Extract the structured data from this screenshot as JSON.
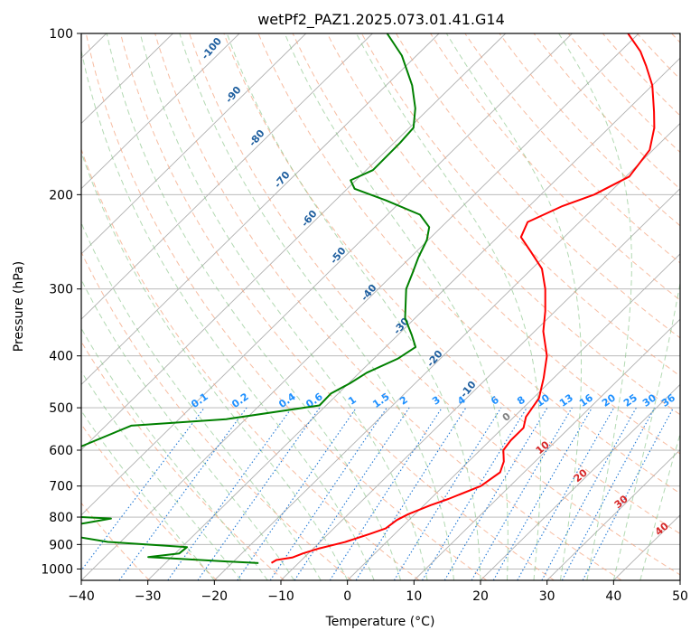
{
  "chart_data": {
    "type": "line",
    "title": "wetPf2_PAZ1.2025.073.01.41.G14",
    "xlabel": "Temperature (°C)",
    "ylabel": "Pressure (hPa)",
    "xlim": [
      -40,
      50
    ],
    "ylim_hPa": [
      1050,
      100
    ],
    "y_scale": "log (inverted)",
    "skewed_isotherms": true,
    "grid": true,
    "x_ticks": [
      "−40",
      "−30",
      "−20",
      "−10",
      "0",
      "10",
      "20",
      "30",
      "40",
      "50"
    ],
    "x_tick_values": [
      -40,
      -30,
      -20,
      -10,
      0,
      10,
      20,
      30,
      40,
      50
    ],
    "y_ticks": [
      "100",
      "200",
      "300",
      "400",
      "500",
      "600",
      "700",
      "800",
      "900",
      "1000"
    ],
    "y_tick_values": [
      100,
      200,
      300,
      400,
      500,
      600,
      700,
      800,
      900,
      1000
    ],
    "series": [
      {
        "role": "temperature",
        "color": "#ff0000",
        "points": [
          [
            974,
            -14.1
          ],
          [
            962,
            -13.8
          ],
          [
            952,
            -11.8
          ],
          [
            935,
            -10.8
          ],
          [
            915,
            -9.1
          ],
          [
            890,
            -6.2
          ],
          [
            860,
            -3.7
          ],
          [
            840,
            -2.2
          ],
          [
            810,
            -1.8
          ],
          [
            790,
            -1.0
          ],
          [
            760,
            1.0
          ],
          [
            740,
            2.7
          ],
          [
            700,
            5.6
          ],
          [
            660,
            6.4
          ],
          [
            630,
            5.3
          ],
          [
            600,
            3.5
          ],
          [
            575,
            3.1
          ],
          [
            545,
            3.1
          ],
          [
            520,
            1.8
          ],
          [
            480,
            0.9
          ],
          [
            440,
            -1.5
          ],
          [
            400,
            -4.4
          ],
          [
            360,
            -8.7
          ],
          [
            330,
            -11.5
          ],
          [
            300,
            -14.9
          ],
          [
            275,
            -18.5
          ],
          [
            255,
            -22.9
          ],
          [
            240,
            -26.5
          ],
          [
            225,
            -27.8
          ],
          [
            210,
            -25.0
          ],
          [
            200,
            -22.0
          ],
          [
            185,
            -19.5
          ],
          [
            165,
            -20.5
          ],
          [
            150,
            -23.2
          ],
          [
            140,
            -25.7
          ],
          [
            125,
            -30.0
          ],
          [
            115,
            -33.9
          ],
          [
            108,
            -37.0
          ],
          [
            100,
            -41.6
          ]
        ]
      },
      {
        "role": "dewpoint",
        "color": "#008000",
        "points": [
          [
            975,
            -16.0
          ],
          [
            967,
            -22.0
          ],
          [
            950,
            -33.5
          ],
          [
            935,
            -29.4
          ],
          [
            910,
            -29.2
          ],
          [
            890,
            -41.9
          ],
          [
            870,
            -47.5
          ],
          [
            840,
            -52.3
          ],
          [
            820,
            -48.0
          ],
          [
            805,
            -45.0
          ],
          [
            795,
            -54.5
          ],
          [
            600,
            -61.3
          ],
          [
            540,
            -56.2
          ],
          [
            525,
            -42.9
          ],
          [
            495,
            -31.0
          ],
          [
            470,
            -31.1
          ],
          [
            450,
            -29.8
          ],
          [
            430,
            -28.9
          ],
          [
            405,
            -26.4
          ],
          [
            385,
            -25.5
          ],
          [
            365,
            -28.0
          ],
          [
            340,
            -31.5
          ],
          [
            300,
            -35.8
          ],
          [
            280,
            -37.3
          ],
          [
            262,
            -38.8
          ],
          [
            243,
            -40.2
          ],
          [
            230,
            -41.8
          ],
          [
            218,
            -45.1
          ],
          [
            205,
            -52.4
          ],
          [
            195,
            -58.9
          ],
          [
            188,
            -60.8
          ],
          [
            180,
            -59.0
          ],
          [
            160,
            -59.1
          ],
          [
            150,
            -59.4
          ],
          [
            138,
            -62.1
          ],
          [
            125,
            -66.1
          ],
          [
            110,
            -72.2
          ],
          [
            100,
            -77.8
          ]
        ]
      }
    ],
    "dry_adiabat_labels": [
      "-100",
      "-90",
      "-80",
      "-70",
      "-60",
      "-50",
      "-40",
      "-30",
      "-20",
      "-10"
    ],
    "mixing_ratio_labels": [
      "0.1",
      "0.2",
      "0.4",
      "0.6",
      "1",
      "1.5",
      "2",
      "3",
      "4",
      "6",
      "8",
      "10",
      "13",
      "16",
      "20",
      "25",
      "30",
      "36"
    ],
    "moist_adiabat_labels": [
      "0",
      "10",
      "20",
      "30",
      "40"
    ]
  },
  "colors": {
    "temperature": "#ff0000",
    "dewpoint": "#008000",
    "isotherm": "#b0b0b0",
    "isobar": "#b0b0b0",
    "dry_adiabat": "#f4a582",
    "moist_adiabat": "#7fbf7f",
    "mixing_ratio": "#1f77d4",
    "dry_label": "#1f5f9f",
    "mixing_label": "#1e90ff",
    "moist_label_zero": "#808080",
    "moist_label": "#d62728"
  }
}
